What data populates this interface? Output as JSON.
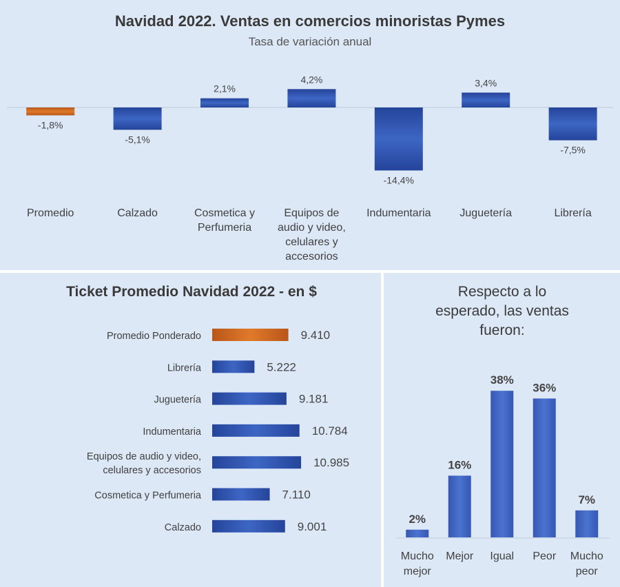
{
  "chart_data": [
    {
      "type": "bar",
      "title": "Navidad 2022. Ventas en comercios minoristas Pymes",
      "subtitle": "Tasa de variación anual",
      "categories": [
        [
          "Promedio"
        ],
        [
          "Calzado"
        ],
        [
          "Cosmetica y",
          "Perfumeria"
        ],
        [
          "Equipos de",
          "audio y video,",
          "celulares y",
          "accesorios"
        ],
        [
          "Indumentaria"
        ],
        [
          "Juguetería"
        ],
        [
          "Librería"
        ]
      ],
      "values": [
        -1.8,
        -5.1,
        2.1,
        4.2,
        -14.4,
        3.4,
        -7.5
      ],
      "labels": [
        "-1,8%",
        "-5,1%",
        "2,1%",
        "4,2%",
        "-14,4%",
        "3,4%",
        "-7,5%"
      ],
      "highlight_index": 0,
      "ylim": [
        -15,
        5
      ],
      "grid": false
    },
    {
      "type": "bar",
      "orientation": "horizontal",
      "title": "Ticket Promedio Navidad 2022 - en $",
      "categories": [
        [
          "Promedio Ponderado"
        ],
        [
          "Librería"
        ],
        [
          "Juguetería"
        ],
        [
          "Indumentaria"
        ],
        [
          "Equipos de audio y video,",
          "celulares y accesorios"
        ],
        [
          "Cosmetica y Perfumeria"
        ],
        [
          "Calzado"
        ]
      ],
      "values": [
        9410,
        5222,
        9181,
        10784,
        10985,
        7110,
        9001
      ],
      "labels": [
        "9.410",
        "5.222",
        "9.181",
        "10.784",
        "10.985",
        "7.110",
        "9.001"
      ],
      "highlight_index": 0,
      "xlim": [
        0,
        12000
      ],
      "grid": false
    },
    {
      "type": "bar",
      "title": [
        "Respecto a lo",
        "esperado, las ventas",
        "fueron:"
      ],
      "categories": [
        [
          "Mucho",
          "mejor"
        ],
        [
          "Mejor"
        ],
        [
          "Igual"
        ],
        [
          "Peor"
        ],
        [
          "Mucho",
          "peor"
        ]
      ],
      "values": [
        2,
        16,
        38,
        36,
        7
      ],
      "labels": [
        "2%",
        "16%",
        "38%",
        "36%",
        "7%"
      ],
      "ylim": [
        0,
        40
      ],
      "grid": false
    }
  ],
  "colors": {
    "bar": "#3d66c4",
    "bar_dark": "#25449a",
    "highlight": "#e07a2a",
    "highlight_dark": "#b9561a",
    "panel": "#dde8f6",
    "text": "#404040"
  }
}
